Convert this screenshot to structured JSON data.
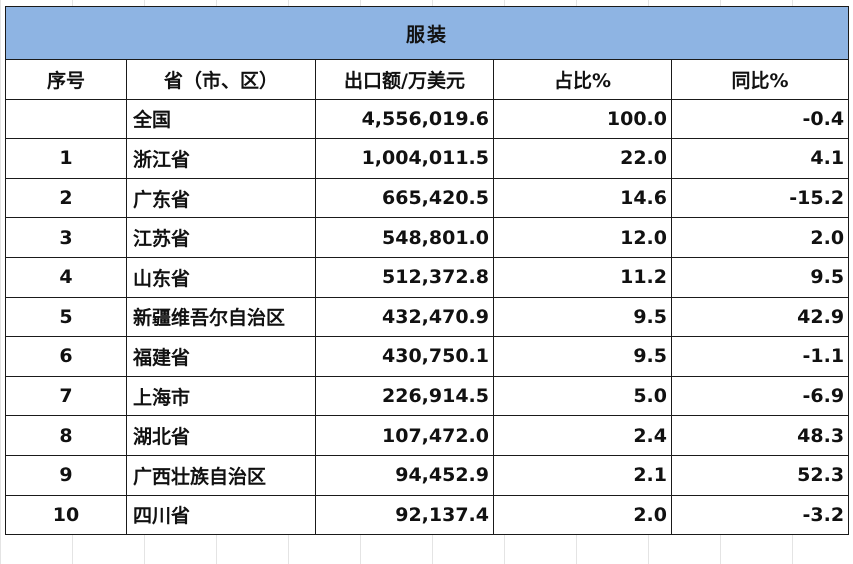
{
  "title": "服装",
  "headers": [
    "序号",
    "省（市、区）",
    "出口额/万美元",
    "占比%",
    "同比%"
  ],
  "rows": [
    {
      "idx": "",
      "province": "全国",
      "export": "4,556,019.6",
      "share": "100.0",
      "yoy": "-0.4"
    },
    {
      "idx": "1",
      "province": "浙江省",
      "export": "1,004,011.5",
      "share": "22.0",
      "yoy": "4.1"
    },
    {
      "idx": "2",
      "province": "广东省",
      "export": "665,420.5",
      "share": "14.6",
      "yoy": "-15.2"
    },
    {
      "idx": "3",
      "province": "江苏省",
      "export": "548,801.0",
      "share": "12.0",
      "yoy": "2.0"
    },
    {
      "idx": "4",
      "province": "山东省",
      "export": "512,372.8",
      "share": "11.2",
      "yoy": "9.5"
    },
    {
      "idx": "5",
      "province": "新疆维吾尔自治区",
      "export": "432,470.9",
      "share": "9.5",
      "yoy": "42.9"
    },
    {
      "idx": "6",
      "province": "福建省",
      "export": "430,750.1",
      "share": "9.5",
      "yoy": "-1.1"
    },
    {
      "idx": "7",
      "province": "上海市",
      "export": "226,914.5",
      "share": "5.0",
      "yoy": "-6.9"
    },
    {
      "idx": "8",
      "province": "湖北省",
      "export": "107,472.0",
      "share": "2.4",
      "yoy": "48.3"
    },
    {
      "idx": "9",
      "province": "广西壮族自治区",
      "export": "94,452.9",
      "share": "2.1",
      "yoy": "52.3"
    },
    {
      "idx": "10",
      "province": "四川省",
      "export": "92,137.4",
      "share": "2.0",
      "yoy": "-3.2"
    }
  ],
  "colors": {
    "title_bg": "#8eb4e3",
    "border": "#1a1a1a"
  }
}
